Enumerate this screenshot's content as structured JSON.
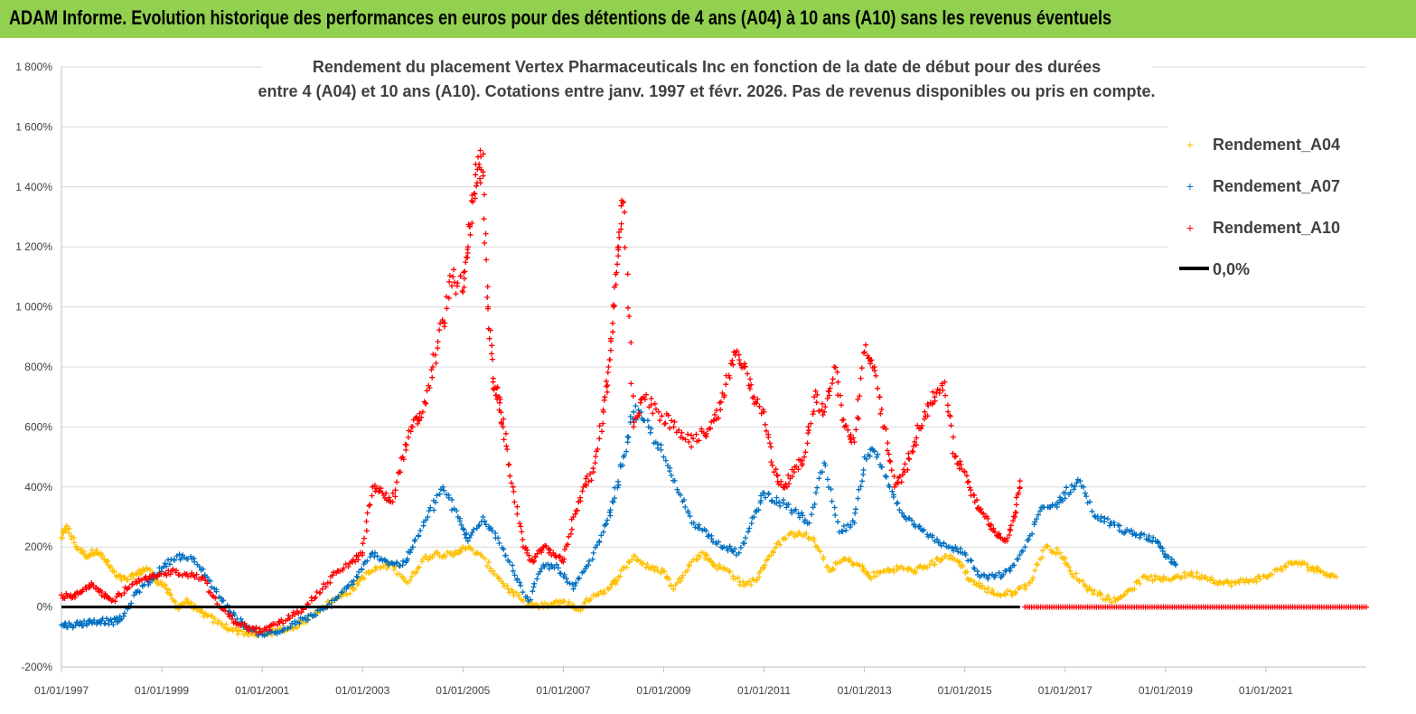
{
  "header": {
    "title": "ADAM Informe. Evolution historique des performances en euros pour des détentions de 4 ans (A04) à 10 ans (A10) sans les revenus éventuels"
  },
  "colors": {
    "banner": "#92d050",
    "A04": "#ffc000",
    "A07": "#0070c0",
    "A10": "#ff0000",
    "zero": "#000000"
  },
  "chart_data": {
    "type": "scatter",
    "title_lines": [
      "Rendement du placement Vertex Pharmaceuticals Inc en fonction de la date de début pour des durées",
      "entre 4 (A04) et 10 ans (A10). Cotations entre janv. 1997 et févr. 2026. Pas de revenus disponibles ou pris en compte."
    ],
    "xlabel": "",
    "ylabel": "",
    "xlim": [
      1997.0,
      2023.0
    ],
    "ylim": [
      -200,
      1800
    ],
    "yticks": [
      -200,
      0,
      200,
      400,
      600,
      800,
      1000,
      1200,
      1400,
      1600,
      1800
    ],
    "ytick_labels": [
      "-200%",
      "0%",
      "200%",
      "400%",
      "600%",
      "800%",
      "1 000%",
      "1 200%",
      "1 400%",
      "1 600%",
      "1 800%"
    ],
    "xticks": [
      1997,
      1999,
      2001,
      2003,
      2005,
      2007,
      2009,
      2011,
      2013,
      2015,
      2017,
      2019,
      2021
    ],
    "xtick_labels": [
      "01/01/1997",
      "01/01/1999",
      "01/01/2001",
      "01/01/2003",
      "01/01/2005",
      "01/01/2007",
      "01/01/2009",
      "01/01/2011",
      "01/01/2013",
      "01/01/2015",
      "01/01/2017",
      "01/01/2019",
      "01/01/2021"
    ],
    "grid": "horizontal",
    "legend_position": "right",
    "series": [
      {
        "name": "Rendement_A04",
        "marker": "+",
        "x": [
          1997.0,
          1997.1,
          1997.3,
          1997.5,
          1997.7,
          1997.9,
          1998.1,
          1998.3,
          1998.5,
          1998.7,
          1998.9,
          1999.1,
          1999.3,
          1999.5,
          1999.7,
          1999.9,
          2000.2,
          2000.5,
          2000.8,
          2001.0,
          2001.3,
          2001.6,
          2001.9,
          2002.2,
          2002.5,
          2002.8,
          2003.0,
          2003.3,
          2003.6,
          2003.9,
          2004.2,
          2004.5,
          2004.8,
          2005.0,
          2005.3,
          2005.6,
          2005.9,
          2006.2,
          2006.5,
          2006.8,
          2007.0,
          2007.3,
          2007.6,
          2007.9,
          2008.1,
          2008.4,
          2008.7,
          2009.0,
          2009.2,
          2009.5,
          2009.8,
          2010.0,
          2010.3,
          2010.6,
          2010.9,
          2011.1,
          2011.4,
          2011.7,
          2012.0,
          2012.3,
          2012.6,
          2012.9,
          2013.1,
          2013.4,
          2013.7,
          2014.0,
          2014.3,
          2014.6,
          2014.9,
          2015.1,
          2015.4,
          2015.7,
          2016.0,
          2016.3,
          2016.6,
          2016.9,
          2017.1,
          2017.4,
          2017.7,
          2018.0,
          2018.3,
          2018.6,
          2018.9,
          2019.2,
          2019.5,
          2019.8,
          2020.1,
          2020.4,
          2020.7,
          2021.0,
          2021.3,
          2021.6,
          2021.9,
          2022.1,
          2022.4
        ],
        "y": [
          230,
          270,
          200,
          170,
          190,
          150,
          100,
          90,
          110,
          130,
          90,
          60,
          0,
          20,
          -10,
          -30,
          -60,
          -80,
          -90,
          -90,
          -80,
          -70,
          -40,
          0,
          30,
          60,
          100,
          130,
          140,
          80,
          160,
          180,
          170,
          200,
          180,
          120,
          60,
          20,
          0,
          10,
          20,
          -10,
          40,
          60,
          100,
          170,
          130,
          120,
          60,
          140,
          180,
          140,
          120,
          70,
          100,
          170,
          230,
          250,
          220,
          120,
          160,
          140,
          100,
          120,
          130,
          120,
          140,
          170,
          150,
          90,
          60,
          40,
          50,
          80,
          200,
          180,
          120,
          70,
          40,
          20,
          60,
          100,
          90,
          100,
          110,
          100,
          80,
          80,
          90,
          100,
          130,
          150,
          130,
          120,
          100
        ]
      },
      {
        "name": "Rendement_A07",
        "marker": "+",
        "x": [
          1997.0,
          1997.2,
          1997.4,
          1997.6,
          1997.8,
          1998.0,
          1998.2,
          1998.5,
          1998.8,
          1999.0,
          1999.3,
          1999.6,
          1999.9,
          2000.2,
          2000.5,
          2000.8,
          2001.1,
          2001.4,
          2001.7,
          2002.0,
          2002.3,
          2002.6,
          2002.9,
          2003.2,
          2003.5,
          2003.8,
          2004.0,
          2004.3,
          2004.6,
          2004.9,
          2005.1,
          2005.4,
          2005.7,
          2006.0,
          2006.3,
          2006.6,
          2006.9,
          2007.2,
          2007.5,
          2007.8,
          2008.0,
          2008.2,
          2008.4,
          2008.7,
          2009.0,
          2009.3,
          2009.6,
          2009.9,
          2010.2,
          2010.5,
          2010.8,
          2011.0,
          2011.3,
          2011.6,
          2011.9,
          2012.2,
          2012.5,
          2012.8,
          2013.0,
          2013.2,
          2013.5,
          2013.8,
          2014.1,
          2014.4,
          2014.7,
          2015.0,
          2015.3,
          2015.6,
          2015.9,
          2016.2,
          2016.5,
          2016.8,
          2017.0,
          2017.3,
          2017.6,
          2017.9,
          2018.2,
          2018.5,
          2018.8,
          2019.0,
          2019.2
        ],
        "y": [
          -60,
          -60,
          -55,
          -50,
          -45,
          -50,
          -40,
          50,
          90,
          130,
          170,
          160,
          100,
          20,
          -40,
          -80,
          -90,
          -80,
          -50,
          -30,
          0,
          50,
          100,
          180,
          150,
          140,
          200,
          300,
          400,
          300,
          220,
          300,
          230,
          120,
          20,
          140,
          130,
          60,
          140,
          250,
          350,
          500,
          650,
          600,
          500,
          380,
          280,
          240,
          200,
          180,
          300,
          380,
          350,
          320,
          280,
          480,
          250,
          280,
          500,
          520,
          400,
          300,
          270,
          220,
          200,
          180,
          100,
          100,
          120,
          200,
          320,
          340,
          380,
          420,
          300,
          280,
          250,
          240,
          220,
          170,
          140
        ]
      },
      {
        "name": "Rendement_A10",
        "marker": "+",
        "x": [
          1997.0,
          1997.2,
          1997.4,
          1997.6,
          1997.8,
          1998.0,
          1998.3,
          1998.6,
          1998.9,
          1999.2,
          1999.5,
          1999.8,
          2000.1,
          2000.4,
          2000.7,
          2001.0,
          2001.3,
          2001.6,
          2001.9,
          2002.2,
          2002.5,
          2002.8,
          2003.0,
          2003.2,
          2003.4,
          2003.6,
          2003.8,
          2004.0,
          2004.2,
          2004.4,
          2004.6,
          2004.8,
          2005.0,
          2005.1,
          2005.2,
          2005.3,
          2005.4,
          2005.5,
          2005.6,
          2005.7,
          2005.8,
          2006.0,
          2006.2,
          2006.4,
          2006.6,
          2006.8,
          2007.0,
          2007.2,
          2007.4,
          2007.6,
          2007.8,
          2007.9,
          2008.0,
          2008.1,
          2008.2,
          2008.4,
          2008.6,
          2008.9,
          2009.2,
          2009.5,
          2009.8,
          2010.0,
          2010.2,
          2010.4,
          2010.6,
          2010.8,
          2011.0,
          2011.2,
          2011.4,
          2011.6,
          2011.8,
          2012.0,
          2012.2,
          2012.4,
          2012.6,
          2012.8,
          2013.0,
          2013.2,
          2013.4,
          2013.6,
          2013.8,
          2014.0,
          2014.2,
          2014.4,
          2014.6,
          2014.8,
          2015.0,
          2015.2,
          2015.4,
          2015.6,
          2015.8,
          2016.0,
          2016.1
        ],
        "y": [
          40,
          30,
          50,
          80,
          50,
          20,
          60,
          90,
          100,
          120,
          110,
          100,
          10,
          -40,
          -70,
          -80,
          -60,
          -30,
          10,
          60,
          120,
          150,
          180,
          400,
          380,
          350,
          500,
          600,
          650,
          800,
          950,
          1100,
          1050,
          1200,
          1350,
          1500,
          1450,
          1000,
          750,
          700,
          600,
          400,
          200,
          150,
          200,
          180,
          150,
          300,
          400,
          450,
          650,
          800,
          1000,
          1200,
          1350,
          600,
          700,
          650,
          600,
          550,
          580,
          620,
          700,
          850,
          800,
          700,
          650,
          450,
          400,
          450,
          500,
          700,
          650,
          800,
          600,
          550,
          850,
          800,
          600,
          400,
          450,
          550,
          650,
          700,
          750,
          500,
          450,
          350,
          300,
          250,
          220,
          300,
          420
        ]
      },
      {
        "name": "Rendement_A10",
        "marker": "+",
        "legend": false,
        "x": [
          2016.2,
          2016.6,
          2017.0,
          2017.4,
          2017.8,
          2018.2,
          2018.6,
          2019.0,
          2019.4,
          2019.8,
          2020.2,
          2020.6,
          2021.0,
          2021.4,
          2021.8,
          2022.2,
          2022.6,
          2023.0
        ],
        "y": [
          0,
          0,
          0,
          0,
          0,
          0,
          0,
          0,
          0,
          0,
          0,
          0,
          0,
          0,
          0,
          0,
          0,
          0
        ]
      }
    ],
    "reference_lines": [
      {
        "name": "0,0%",
        "y": 0,
        "x_range": [
          1997.0,
          2016.1
        ]
      }
    ],
    "legend": {
      "entries": [
        {
          "label": "Rendement_A04",
          "symbol": "+"
        },
        {
          "label": "Rendement_A07",
          "symbol": "+"
        },
        {
          "label": "Rendement_A10",
          "symbol": "+"
        },
        {
          "label": "0,0%",
          "symbol": "line"
        }
      ]
    }
  }
}
